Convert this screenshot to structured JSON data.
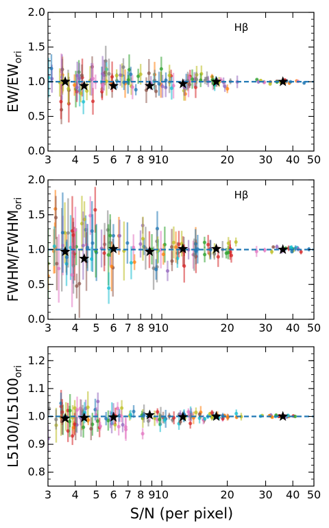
{
  "figure": {
    "xlabel": "S/N (per pixel)"
  },
  "chart_data": [
    {
      "type": "scatter",
      "title": "",
      "annotation": "Hβ",
      "ylabel": "EW/EW",
      "ylabel_sub": "ori",
      "xscale": "log",
      "xlim": [
        3,
        50
      ],
      "ylim": [
        0.0,
        2.0
      ],
      "xticks": [
        3,
        4,
        5,
        6,
        7,
        8,
        9,
        10,
        20,
        30,
        40,
        50
      ],
      "xtick_labels": [
        "3",
        "4",
        "5",
        "6",
        "7",
        "8",
        "9",
        "10",
        "20",
        "30",
        "40",
        "50"
      ],
      "yticks": [
        0.0,
        0.5,
        1.0,
        1.5,
        2.0
      ],
      "ytick_labels": [
        "0.0",
        "0.5",
        "1.0",
        "1.5",
        "2.0"
      ],
      "reference_line": 1.0,
      "median_points": {
        "x": [
          3.6,
          4.4,
          6.0,
          8.8,
          12.5,
          17.8,
          36.0
        ],
        "y": [
          1.0,
          0.94,
          0.94,
          0.94,
          0.97,
          1.0,
          1.0
        ]
      },
      "scatter_summary": {
        "points_per_bin": 20,
        "y_spread_by_bin": [
          0.22,
          0.2,
          0.17,
          0.14,
          0.11,
          0.07,
          0.02
        ]
      }
    },
    {
      "type": "scatter",
      "title": "",
      "annotation": "Hβ",
      "ylabel": "FWHM/FWHM",
      "ylabel_sub": "ori",
      "xscale": "log",
      "xlim": [
        3,
        50
      ],
      "ylim": [
        0.0,
        2.0
      ],
      "xticks": [
        3,
        4,
        5,
        6,
        7,
        8,
        9,
        10,
        20,
        30,
        40,
        50
      ],
      "xtick_labels": [
        "3",
        "4",
        "5",
        "6",
        "7",
        "8",
        "9",
        "10",
        "20",
        "30",
        "40",
        "50"
      ],
      "yticks": [
        0.0,
        0.5,
        1.0,
        1.5,
        2.0
      ],
      "ytick_labels": [
        "0.0",
        "0.5",
        "1.0",
        "1.5",
        "2.0"
      ],
      "reference_line": 1.0,
      "median_points": {
        "x": [
          3.6,
          4.4,
          6.0,
          8.8,
          12.5,
          17.8,
          36.0
        ],
        "y": [
          0.97,
          0.87,
          1.01,
          0.97,
          1.01,
          1.01,
          1.0
        ]
      },
      "scatter_summary": {
        "points_per_bin": 20,
        "y_spread_by_bin": [
          0.4,
          0.35,
          0.3,
          0.22,
          0.16,
          0.1,
          0.03
        ]
      }
    },
    {
      "type": "scatter",
      "title": "",
      "annotation": "",
      "ylabel": "L5100/L5100",
      "ylabel_sub": "ori",
      "xscale": "log",
      "xlim": [
        3,
        50
      ],
      "ylim": [
        0.75,
        1.25
      ],
      "xticks": [
        3,
        4,
        5,
        6,
        7,
        8,
        9,
        10,
        20,
        30,
        40,
        50
      ],
      "xtick_labels": [
        "3",
        "4",
        "5",
        "6",
        "7",
        "8",
        "9",
        "10",
        "20",
        "30",
        "40",
        "50"
      ],
      "yticks": [
        0.8,
        0.9,
        1.0,
        1.1,
        1.2
      ],
      "ytick_labels": [
        "0.8",
        "0.9",
        "1.0",
        "1.1",
        "1.2"
      ],
      "reference_line": 1.0,
      "median_points": {
        "x": [
          3.6,
          4.4,
          6.0,
          8.8,
          12.5,
          17.8,
          36.0
        ],
        "y": [
          0.993,
          0.995,
          0.997,
          1.005,
          0.998,
          1.0,
          1.0
        ]
      },
      "scatter_summary": {
        "points_per_bin": 20,
        "y_spread_by_bin": [
          0.045,
          0.04,
          0.03,
          0.022,
          0.016,
          0.01,
          0.004
        ]
      }
    }
  ],
  "colors": [
    "#1f77b4",
    "#ff7f0e",
    "#2ca02c",
    "#d62728",
    "#9467bd",
    "#8c564b",
    "#e377c2",
    "#7f7f7f",
    "#bcbd22",
    "#17becf"
  ],
  "style": {
    "ref_line_color": "#1f77b4",
    "star_color": "#000000"
  }
}
